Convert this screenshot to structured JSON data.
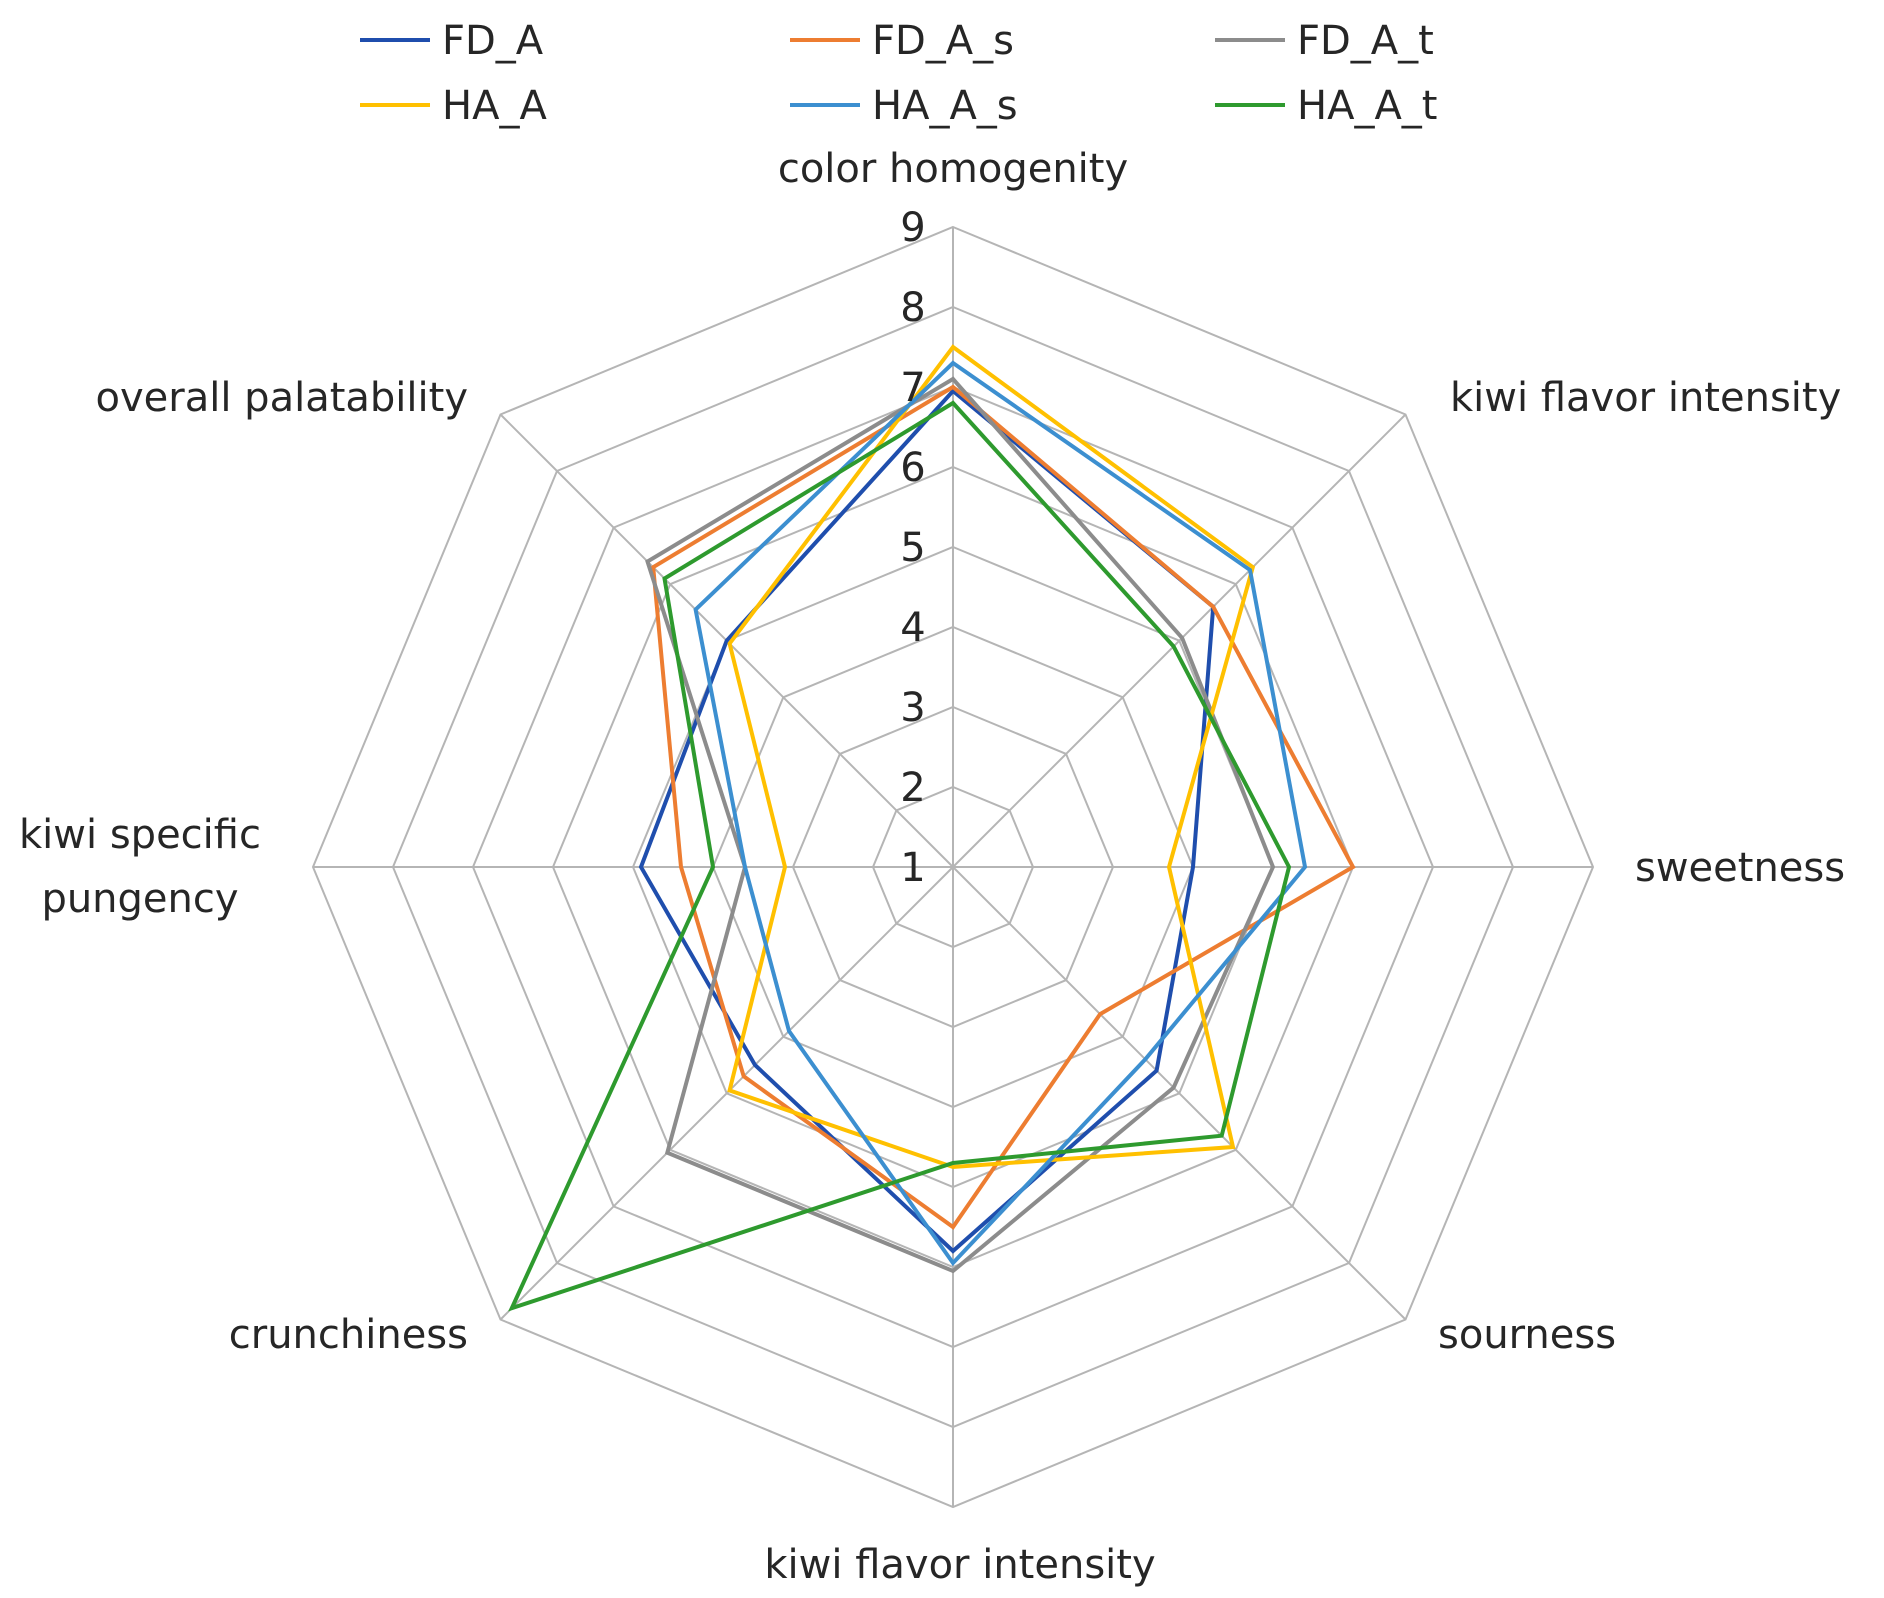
{
  "chart_data": {
    "type": "radar",
    "categories": [
      "color homogenity",
      "kiwi flavor intensity",
      "sweetness",
      "sourness",
      "kiwi flavor intensity",
      "crunchiness",
      "kiwi specific pungency",
      "overall palatability"
    ],
    "category_lines": [
      [
        "color homogenity"
      ],
      [
        "kiwi flavor intensity"
      ],
      [
        "sweetness"
      ],
      [
        "sourness"
      ],
      [
        "kiwi flavor intensity"
      ],
      [
        "crunchiness"
      ],
      [
        "kiwi specific",
        "pungency"
      ],
      [
        "overall palatability"
      ]
    ],
    "r_min": 1,
    "r_max": 9,
    "ticks": [
      "1",
      "2",
      "3",
      "4",
      "5",
      "6",
      "7",
      "8",
      "9"
    ],
    "grid": true,
    "legend_position": "top",
    "series": [
      {
        "name": "FD_A",
        "color": "#1F4EAD",
        "values": [
          6.95,
          5.6,
          4.0,
          4.6,
          5.8,
          4.5,
          4.9,
          5.0
        ]
      },
      {
        "name": "FD_A_s",
        "color": "#ED7D31",
        "values": [
          7.0,
          5.6,
          6.0,
          3.6,
          5.5,
          4.7,
          4.4,
          6.3
        ]
      },
      {
        "name": "FD_A_t",
        "color": "#8C8C8C",
        "values": [
          7.1,
          5.05,
          5.0,
          4.9,
          6.05,
          6.05,
          3.6,
          6.4
        ]
      },
      {
        "name": "HA_A",
        "color": "#FFC000",
        "values": [
          7.5,
          6.3,
          3.7,
          5.95,
          4.75,
          4.95,
          3.1,
          4.95
        ]
      },
      {
        "name": "HA_A_s",
        "color": "#3C8FD0",
        "values": [
          7.3,
          6.25,
          5.4,
          4.4,
          5.95,
          3.9,
          3.6,
          5.55
        ]
      },
      {
        "name": "HA_A_t",
        "color": "#2E9A2E",
        "values": [
          6.8,
          4.9,
          5.2,
          5.75,
          4.7,
          8.8,
          4.0,
          6.1
        ]
      }
    ]
  }
}
